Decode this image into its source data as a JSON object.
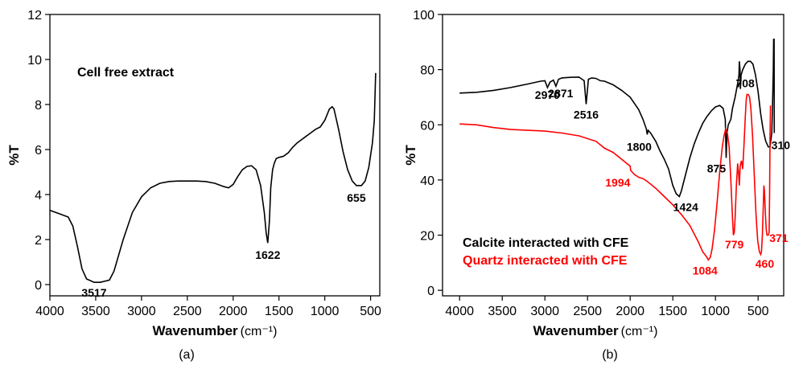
{
  "chart_data": [
    {
      "type": "line",
      "panel_label": "(a)",
      "xlabel": "Wavenumber",
      "xlabel_unit": "(cm⁻¹)",
      "ylabel": "%T",
      "xlim": [
        4000,
        400
      ],
      "ylim": [
        -0.5,
        12
      ],
      "xticks": [
        4000,
        3500,
        3000,
        2500,
        2000,
        1500,
        1000,
        500
      ],
      "yticks": [
        0,
        2,
        4,
        6,
        8,
        10,
        12
      ],
      "legend_text": "Cell free extract",
      "series": [
        {
          "name": "Cell free extract",
          "color": "#000000",
          "points": [
            [
              4000,
              3.3
            ],
            [
              3900,
              3.15
            ],
            [
              3800,
              3.0
            ],
            [
              3750,
              2.6
            ],
            [
              3700,
              1.7
            ],
            [
              3650,
              0.7
            ],
            [
              3600,
              0.25
            ],
            [
              3517,
              0.1
            ],
            [
              3450,
              0.1
            ],
            [
              3350,
              0.2
            ],
            [
              3300,
              0.6
            ],
            [
              3200,
              2.0
            ],
            [
              3100,
              3.2
            ],
            [
              3000,
              3.9
            ],
            [
              2900,
              4.3
            ],
            [
              2800,
              4.5
            ],
            [
              2700,
              4.58
            ],
            [
              2600,
              4.6
            ],
            [
              2400,
              4.6
            ],
            [
              2300,
              4.58
            ],
            [
              2200,
              4.5
            ],
            [
              2100,
              4.35
            ],
            [
              2050,
              4.3
            ],
            [
              2000,
              4.45
            ],
            [
              1950,
              4.8
            ],
            [
              1900,
              5.1
            ],
            [
              1850,
              5.25
            ],
            [
              1800,
              5.28
            ],
            [
              1750,
              5.1
            ],
            [
              1700,
              4.4
            ],
            [
              1660,
              3.2
            ],
            [
              1640,
              2.3
            ],
            [
              1622,
              1.85
            ],
            [
              1605,
              2.8
            ],
            [
              1590,
              4.3
            ],
            [
              1570,
              5.1
            ],
            [
              1550,
              5.4
            ],
            [
              1530,
              5.6
            ],
            [
              1500,
              5.65
            ],
            [
              1450,
              5.7
            ],
            [
              1400,
              5.85
            ],
            [
              1350,
              6.1
            ],
            [
              1300,
              6.3
            ],
            [
              1250,
              6.45
            ],
            [
              1200,
              6.6
            ],
            [
              1150,
              6.75
            ],
            [
              1100,
              6.9
            ],
            [
              1050,
              7.0
            ],
            [
              1000,
              7.3
            ],
            [
              950,
              7.8
            ],
            [
              920,
              7.9
            ],
            [
              900,
              7.8
            ],
            [
              850,
              6.9
            ],
            [
              800,
              5.9
            ],
            [
              750,
              5.1
            ],
            [
              700,
              4.6
            ],
            [
              655,
              4.4
            ],
            [
              600,
              4.4
            ],
            [
              560,
              4.6
            ],
            [
              520,
              5.2
            ],
            [
              480,
              6.3
            ],
            [
              460,
              7.3
            ],
            [
              445,
              9.4
            ]
          ]
        }
      ],
      "annotations": [
        {
          "text": "3517",
          "x": 3517,
          "y": 0.1,
          "color": "#000000"
        },
        {
          "text": "1622",
          "x": 1622,
          "y": 1.85,
          "color": "#000000"
        },
        {
          "text": "655",
          "x": 655,
          "y": 4.4,
          "color": "#000000"
        }
      ]
    },
    {
      "type": "line",
      "panel_label": "(b)",
      "xlabel": "Wavenumber",
      "xlabel_unit": "(cm⁻¹)",
      "ylabel": "%T",
      "xlim": [
        4200,
        200
      ],
      "ylim": [
        -2,
        100
      ],
      "xticks": [
        4000,
        3500,
        3000,
        2500,
        2000,
        1500,
        1000,
        500
      ],
      "yticks": [
        0,
        20,
        40,
        60,
        80,
        100
      ],
      "legend": [
        {
          "text": "Calcite interacted with CFE",
          "color": "#000000"
        },
        {
          "text": "Quartz interacted with CFE",
          "color": "#ff0000"
        }
      ],
      "series": [
        {
          "name": "Calcite interacted with CFE",
          "color": "#000000",
          "points": [
            [
              4000,
              71.5
            ],
            [
              3800,
              71.8
            ],
            [
              3600,
              72.5
            ],
            [
              3400,
              73.5
            ],
            [
              3200,
              74.8
            ],
            [
              3050,
              75.8
            ],
            [
              3000,
              76
            ],
            [
              2970,
              73.5
            ],
            [
              2940,
              75.5
            ],
            [
              2900,
              76.2
            ],
            [
              2871,
              74
            ],
            [
              2840,
              76.5
            ],
            [
              2800,
              77
            ],
            [
              2700,
              77.2
            ],
            [
              2600,
              77.3
            ],
            [
              2540,
              76
            ],
            [
              2516,
              67.5
            ],
            [
              2490,
              76.5
            ],
            [
              2450,
              77
            ],
            [
              2400,
              76.8
            ],
            [
              2350,
              76
            ],
            [
              2300,
              75.8
            ],
            [
              2200,
              74.5
            ],
            [
              2100,
              72.5
            ],
            [
              2000,
              70
            ],
            [
              1900,
              65.5
            ],
            [
              1850,
              62
            ],
            [
              1810,
              58.5
            ],
            [
              1800,
              56.5
            ],
            [
              1790,
              58
            ],
            [
              1760,
              57
            ],
            [
              1700,
              54
            ],
            [
              1650,
              50.5
            ],
            [
              1600,
              47.5
            ],
            [
              1550,
              44
            ],
            [
              1500,
              38
            ],
            [
              1460,
              35
            ],
            [
              1424,
              34
            ],
            [
              1400,
              36
            ],
            [
              1350,
              42
            ],
            [
              1300,
              48
            ],
            [
              1250,
              53
            ],
            [
              1200,
              57
            ],
            [
              1150,
              60.5
            ],
            [
              1100,
              63
            ],
            [
              1050,
              65
            ],
            [
              1000,
              66.5
            ],
            [
              950,
              67
            ],
            [
              910,
              66
            ],
            [
              885,
              62
            ],
            [
              875,
              48
            ],
            [
              865,
              57
            ],
            [
              850,
              60
            ],
            [
              820,
              62
            ],
            [
              800,
              66
            ],
            [
              770,
              70
            ],
            [
              740,
              75
            ],
            [
              725,
              78
            ],
            [
              720,
              83
            ],
            [
              712,
              80
            ],
            [
              708,
              73
            ],
            [
              704,
              75
            ],
            [
              700,
              78
            ],
            [
              680,
              80
            ],
            [
              650,
              82
            ],
            [
              620,
              83
            ],
            [
              590,
              83
            ],
            [
              560,
              82
            ],
            [
              530,
              78
            ],
            [
              500,
              72
            ],
            [
              470,
              64
            ],
            [
              440,
              58
            ],
            [
              410,
              54
            ],
            [
              380,
              52
            ],
            [
              360,
              52
            ],
            [
              340,
              57
            ],
            [
              330,
              68
            ],
            [
              322,
              80
            ],
            [
              318,
              91
            ],
            [
              312,
              91
            ],
            [
              310,
              57
            ]
          ]
        },
        {
          "name": "Quartz interacted with CFE",
          "color": "#ff0000",
          "points": [
            [
              4000,
              60.3
            ],
            [
              3800,
              60
            ],
            [
              3600,
              59
            ],
            [
              3400,
              58.3
            ],
            [
              3200,
              58
            ],
            [
              3000,
              57.7
            ],
            [
              2800,
              57
            ],
            [
              2600,
              56
            ],
            [
              2400,
              54
            ],
            [
              2300,
              51.5
            ],
            [
              2200,
              50
            ],
            [
              2100,
              47.5
            ],
            [
              2000,
              45
            ],
            [
              1994,
              43.5
            ],
            [
              1950,
              42
            ],
            [
              1900,
              41
            ],
            [
              1850,
              40.5
            ],
            [
              1800,
              39.5
            ],
            [
              1700,
              37
            ],
            [
              1600,
              34
            ],
            [
              1500,
              31
            ],
            [
              1400,
              27.5
            ],
            [
              1300,
              23.5
            ],
            [
              1200,
              17.5
            ],
            [
              1150,
              14
            ],
            [
              1100,
              12
            ],
            [
              1084,
              11
            ],
            [
              1060,
              12
            ],
            [
              1040,
              15
            ],
            [
              1010,
              22
            ],
            [
              980,
              32
            ],
            [
              950,
              43
            ],
            [
              920,
              52
            ],
            [
              900,
              56
            ],
            [
              880,
              58.5
            ],
            [
              860,
              57
            ],
            [
              840,
              52
            ],
            [
              820,
              40
            ],
            [
              800,
              26
            ],
            [
              790,
              20
            ],
            [
              779,
              21
            ],
            [
              770,
              26
            ],
            [
              755,
              38
            ],
            [
              740,
              46
            ],
            [
              730,
              43
            ],
            [
              720,
              38
            ],
            [
              710,
              45
            ],
            [
              695,
              47
            ],
            [
              680,
              44
            ],
            [
              665,
              53
            ],
            [
              650,
              63
            ],
            [
              640,
              69
            ],
            [
              630,
              71
            ],
            [
              615,
              71
            ],
            [
              600,
              70
            ],
            [
              585,
              66
            ],
            [
              565,
              56
            ],
            [
              545,
              42
            ],
            [
              525,
              28
            ],
            [
              505,
              18
            ],
            [
              485,
              14
            ],
            [
              470,
              13
            ],
            [
              460,
              14
            ],
            [
              450,
              20
            ],
            [
              440,
              30
            ],
            [
              432,
              38
            ],
            [
              425,
              36
            ],
            [
              415,
              28
            ],
            [
              405,
              22
            ],
            [
              395,
              20
            ],
            [
              380,
              20
            ],
            [
              371,
              21
            ],
            [
              365,
              35
            ],
            [
              360,
              55
            ],
            [
              355,
              67
            ]
          ]
        }
      ],
      "annotations": [
        {
          "text": "2970",
          "x": 2970,
          "y": 73.5,
          "color": "#000000"
        },
        {
          "text": "2871",
          "x": 2871,
          "y": 74,
          "color": "#000000"
        },
        {
          "text": "2516",
          "x": 2516,
          "y": 67.5,
          "color": "#000000"
        },
        {
          "text": "1800",
          "x": 1800,
          "y": 56.5,
          "color": "#000000"
        },
        {
          "text": "1424",
          "x": 1424,
          "y": 34,
          "color": "#000000"
        },
        {
          "text": "875",
          "x": 875,
          "y": 48,
          "color": "#000000"
        },
        {
          "text": "708",
          "x": 708,
          "y": 73,
          "color": "#000000"
        },
        {
          "text": "310",
          "x": 310,
          "y": 57,
          "color": "#000000"
        },
        {
          "text": "1994",
          "x": 1994,
          "y": 43.5,
          "color": "#ff0000"
        },
        {
          "text": "1084",
          "x": 1084,
          "y": 11,
          "color": "#ff0000"
        },
        {
          "text": "779",
          "x": 779,
          "y": 21,
          "color": "#ff0000"
        },
        {
          "text": "460",
          "x": 460,
          "y": 14,
          "color": "#ff0000"
        },
        {
          "text": "371",
          "x": 371,
          "y": 21,
          "color": "#ff0000"
        }
      ]
    }
  ]
}
